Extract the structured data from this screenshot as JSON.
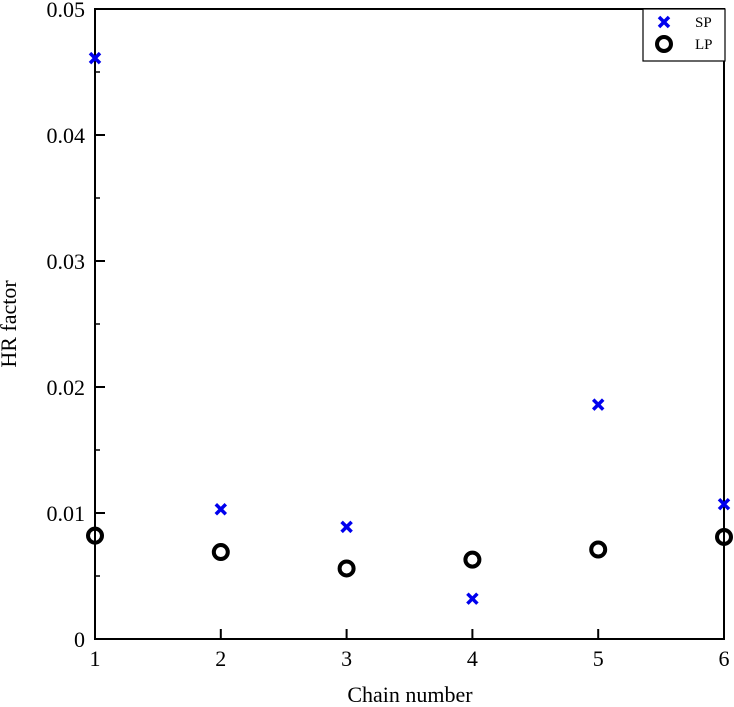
{
  "chart_data": {
    "type": "scatter",
    "title": "",
    "xlabel": "Chain number",
    "ylabel": "HR factor",
    "xlim": [
      1,
      6
    ],
    "ylim": [
      0,
      0.05
    ],
    "x_ticks": [
      1,
      2,
      3,
      4,
      5,
      6
    ],
    "y_ticks": [
      0,
      0.01,
      0.02,
      0.03,
      0.04,
      0.05
    ],
    "y_tick_labels": [
      "0",
      "0.01",
      "0.02",
      "0.03",
      "0.04",
      "0.05"
    ],
    "grid": false,
    "legend_position": "top-right",
    "series": [
      {
        "name": "SP",
        "marker": "x",
        "color": "#0000ee",
        "x": [
          1,
          2,
          3,
          4,
          5,
          6
        ],
        "y": [
          0.0461,
          0.0103,
          0.0089,
          0.0032,
          0.0186,
          0.0107
        ]
      },
      {
        "name": "LP",
        "marker": "circle",
        "color": "#000000",
        "x": [
          1,
          2,
          3,
          4,
          5,
          6
        ],
        "y": [
          0.0082,
          0.0069,
          0.0056,
          0.0063,
          0.0071,
          0.0081
        ]
      }
    ]
  }
}
